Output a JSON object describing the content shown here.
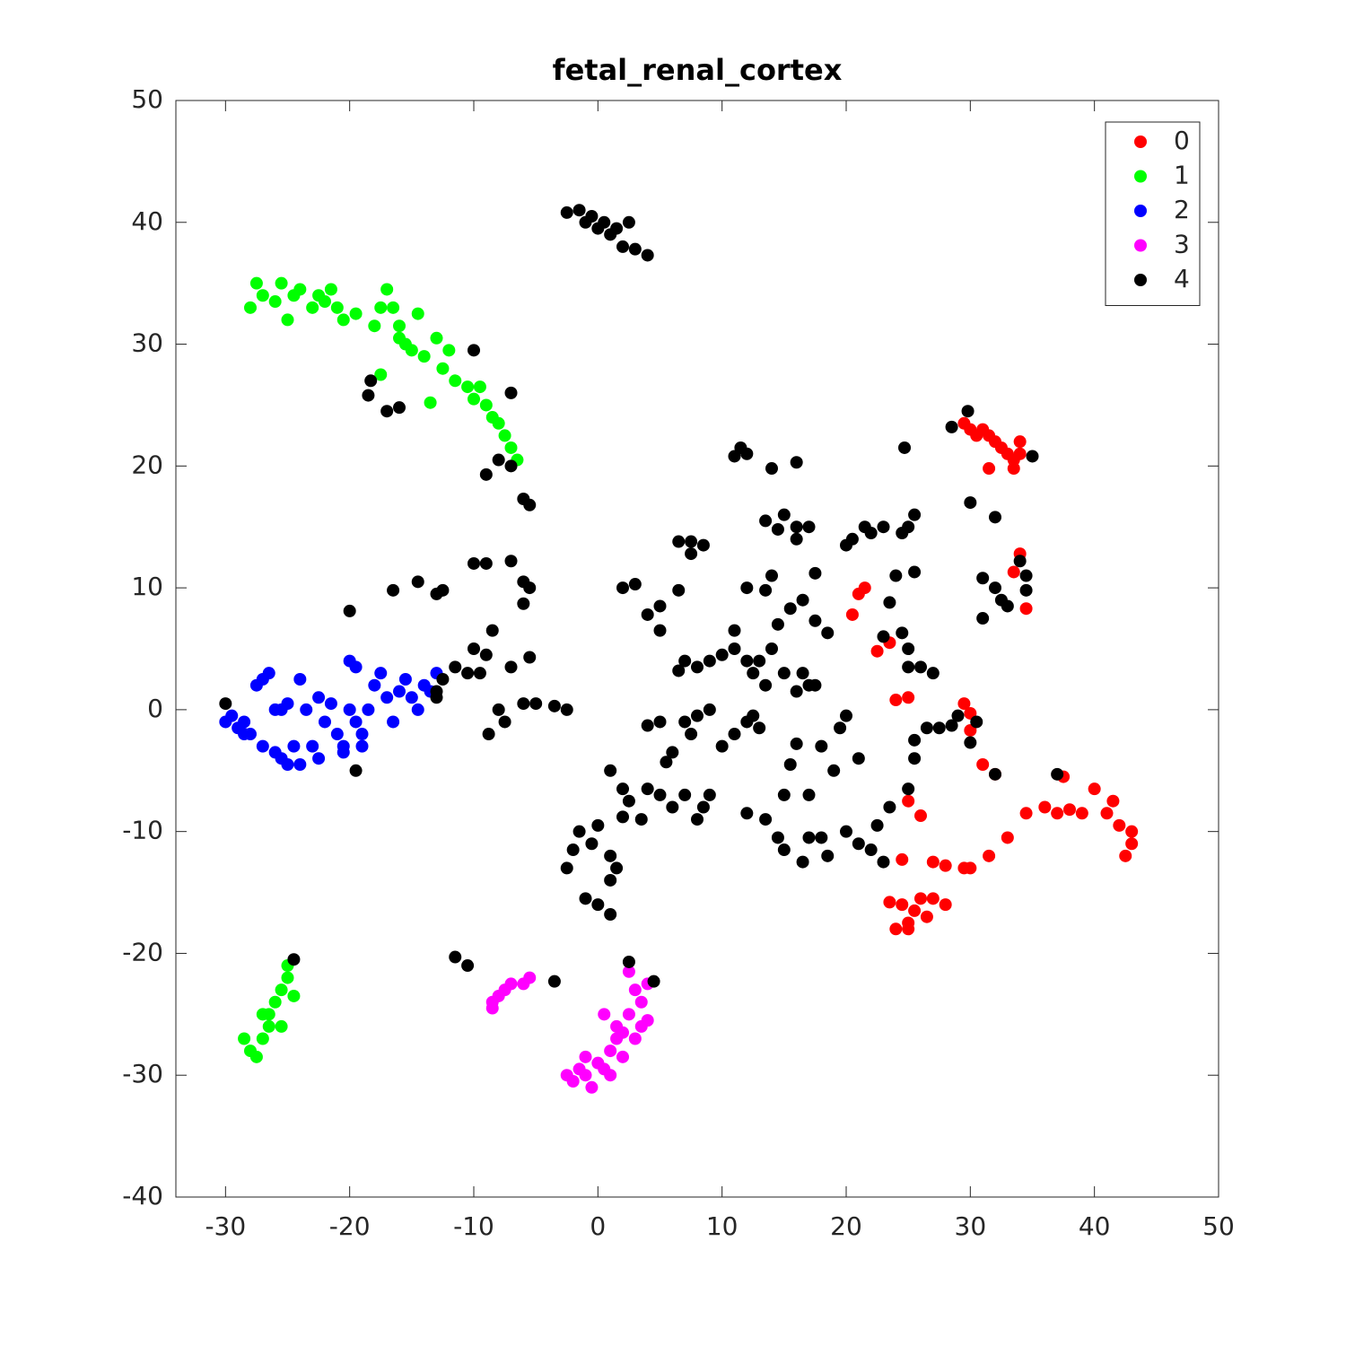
{
  "chart_data": {
    "type": "scatter",
    "title": "fetal_renal_cortex",
    "xlim": [
      -34,
      50
    ],
    "ylim": [
      -40,
      50
    ],
    "xticks": [
      -30,
      -20,
      -10,
      0,
      10,
      20,
      30,
      40,
      50
    ],
    "yticks": [
      -40,
      -30,
      -20,
      -10,
      0,
      10,
      20,
      30,
      40,
      50
    ],
    "legend": "top-right",
    "series": [
      {
        "name": "0",
        "color": "#ff0000",
        "x": [
          29.5,
          30,
          30.5,
          31,
          31.5,
          32,
          32.5,
          33,
          33.5,
          34,
          31.5,
          33.5,
          34,
          21,
          21.5,
          20.5,
          22.5,
          23.5,
          24,
          25,
          29.5,
          30,
          30,
          31,
          32,
          25,
          26,
          24.5,
          27,
          28,
          29.5,
          30,
          31.5,
          33,
          34.5,
          36,
          37,
          38,
          39,
          40,
          41,
          41.5,
          42,
          43,
          42.5,
          43,
          37.5,
          34,
          33.5,
          34.5,
          24.5,
          25,
          25.5,
          26,
          26.5,
          27,
          24,
          25,
          23.5,
          28
        ],
        "y": [
          23.5,
          23,
          22.5,
          23,
          22.5,
          22,
          21.5,
          21,
          20.5,
          21,
          19.8,
          19.8,
          22,
          9.5,
          10,
          7.8,
          4.8,
          5.5,
          0.8,
          1,
          0.5,
          -0.3,
          -1.7,
          -4.5,
          -5.3,
          -7.5,
          -8.7,
          -12.3,
          -12.5,
          -12.8,
          -13,
          -13,
          -12,
          -10.5,
          -8.5,
          -8,
          -8.5,
          -8.2,
          -8.5,
          -6.5,
          -8.5,
          -7.5,
          -9.5,
          -11,
          -12,
          -10,
          -5.5,
          12.8,
          11.3,
          8.3,
          -16,
          -17.5,
          -16.5,
          -15.5,
          -17,
          -15.5,
          -18,
          -18,
          -15.8,
          -16
        ]
      },
      {
        "name": "1",
        "color": "#00ff00",
        "x": [
          -28,
          -27.5,
          -27,
          -26,
          -25.5,
          -25,
          -24.5,
          -24,
          -23,
          -22.5,
          -22,
          -21.5,
          -21,
          -20.5,
          -19.5,
          -18,
          -17.5,
          -17,
          -16.5,
          -16,
          -15.5,
          -14.5,
          -15,
          -14,
          -13,
          -12.5,
          -12,
          -11.5,
          -10.5,
          -10,
          -9.5,
          -9,
          -8.5,
          -8,
          -7.5,
          -7,
          -6.5,
          -13.5,
          -17.5,
          -16,
          -28.5,
          -28,
          -27.5,
          -27,
          -26.5,
          -26.5,
          -26,
          -25.5,
          -25,
          -25,
          -24.5,
          -25.5,
          -27
        ],
        "y": [
          33,
          35,
          34,
          33.5,
          35,
          32,
          34,
          34.5,
          33,
          34,
          33.5,
          34.5,
          33,
          32,
          32.5,
          31.5,
          33,
          34.5,
          33,
          31.5,
          30,
          32.5,
          29.5,
          29,
          30.5,
          28,
          29.5,
          27,
          26.5,
          25.5,
          26.5,
          25,
          24,
          23.5,
          22.5,
          21.5,
          20.5,
          25.2,
          27.5,
          30.5,
          -27,
          -28,
          -28.5,
          -27,
          -26,
          -25,
          -24,
          -23,
          -22,
          -21,
          -23.5,
          -26,
          -25
        ]
      },
      {
        "name": "2",
        "color": "#0000ff",
        "x": [
          -30,
          -29.5,
          -29,
          -28.5,
          -28,
          -27.5,
          -27,
          -26.5,
          -27,
          -26,
          -25.5,
          -25,
          -24.5,
          -24,
          -25.5,
          -25,
          -24,
          -23.5,
          -23,
          -22.5,
          -22.5,
          -22,
          -21.5,
          -21,
          -20.5,
          -20,
          -19.5,
          -20,
          -19.5,
          -19,
          -18.5,
          -18,
          -17.5,
          -17,
          -16.5,
          -16,
          -15.5,
          -15,
          -14.5,
          -14,
          -13.5,
          -13,
          -19,
          -20.5,
          -28.5,
          -26
        ],
        "y": [
          -1,
          -0.5,
          -1.5,
          -1,
          -2,
          2,
          2.5,
          3,
          -3,
          -3.5,
          -4,
          -4.5,
          -3,
          -4.5,
          0,
          0.5,
          2.5,
          0,
          -3,
          -4,
          1,
          -1,
          0.5,
          -2,
          -3,
          4,
          3.5,
          0,
          -1,
          -2,
          0,
          2,
          3,
          1,
          -1,
          1.5,
          2.5,
          1,
          0,
          2,
          1.5,
          3,
          -3,
          -3.5,
          -2,
          0
        ]
      },
      {
        "name": "3",
        "color": "#ff00ff",
        "x": [
          -8.5,
          -8,
          -7.5,
          -7,
          -6,
          -5.5,
          -8.5,
          -2.5,
          -2,
          -1.5,
          -1,
          -1,
          -0.5,
          0,
          0.5,
          1,
          1,
          1.5,
          2,
          2,
          2.5,
          2.5,
          3,
          3,
          3.5,
          3.5,
          4,
          4,
          0.5,
          1.5
        ],
        "y": [
          -24,
          -23.5,
          -23,
          -22.5,
          -22.5,
          -22,
          -24.5,
          -30,
          -30.5,
          -29.5,
          -28.5,
          -30,
          -31,
          -29,
          -29.5,
          -28,
          -30,
          -27,
          -26.5,
          -28.5,
          -25,
          -21.5,
          -23,
          -27,
          -24,
          -26,
          -22.5,
          -25.5,
          -25,
          -26
        ]
      },
      {
        "name": "4",
        "color": "#000000",
        "x": [
          -1.5,
          -1,
          -0.5,
          0,
          0.5,
          1,
          1.5,
          2,
          2.5,
          3,
          4,
          -2.5,
          -10,
          -7,
          -18.5,
          -18.3,
          -17,
          -16,
          -8,
          -7,
          -9,
          -6,
          -5.5,
          -10,
          -9,
          -7,
          -6,
          -5.5,
          -6,
          -13,
          -12.5,
          -14.5,
          -16.5,
          -20,
          -10,
          -9,
          -8.5,
          -10.5,
          -11.5,
          -12.5,
          -13,
          -9.5,
          -8,
          -7.5,
          -8.8,
          -6,
          -5,
          -3.5,
          -2.5,
          -7,
          -5.5,
          -13,
          -30,
          -19.5,
          -24.5,
          -11.5,
          -10.5,
          -3.5,
          2.5,
          4.5,
          2,
          3,
          4,
          5,
          5,
          6.5,
          6.5,
          7.5,
          7.5,
          8.5,
          6.5,
          7,
          8,
          9,
          10,
          11,
          11,
          12,
          12.5,
          13,
          13.5,
          14,
          14.5,
          15,
          16,
          16.5,
          17,
          17.5,
          15.5,
          13.5,
          12,
          14,
          16.5,
          17.5,
          18.5,
          17.5,
          11,
          11.5,
          12,
          14,
          16,
          13.5,
          15,
          16,
          17,
          14.5,
          16,
          20,
          20.5,
          21.5,
          22,
          23,
          24.5,
          25,
          25.5,
          24.7,
          29.8,
          28.5,
          30,
          32,
          35,
          23.5,
          24,
          25.5,
          24.5,
          23,
          31,
          32,
          32.5,
          33,
          34.5,
          34.5,
          34,
          31,
          5,
          4,
          6,
          5.5,
          7,
          7.5,
          8,
          9,
          10,
          11,
          12,
          12.5,
          13,
          1,
          2,
          2.5,
          4,
          5,
          6,
          7,
          8,
          8.5,
          9,
          3.5,
          2,
          0,
          -1.5,
          -2,
          -0.5,
          -2.5,
          1,
          1.5,
          1,
          -1,
          0,
          1,
          12,
          13.5,
          14.5,
          15,
          16.5,
          17,
          18,
          18.5,
          17,
          15.5,
          18,
          16,
          15,
          19,
          19.5,
          20,
          21,
          20,
          21,
          22,
          23,
          23.5,
          25,
          25.5,
          25.5,
          26.5,
          27.5,
          29,
          30,
          30.5,
          25,
          26,
          27,
          25,
          32,
          37,
          28.5,
          22.5
        ],
        "y": [
          41,
          40,
          40.5,
          39.5,
          40,
          39,
          39.5,
          38,
          40,
          37.8,
          37.3,
          40.8,
          29.5,
          26,
          25.8,
          27,
          24.5,
          24.8,
          20.5,
          20,
          19.3,
          17.3,
          16.8,
          12,
          12,
          12.2,
          10.5,
          10,
          8.7,
          9.5,
          9.8,
          10.5,
          9.8,
          8.1,
          5,
          4.5,
          6.5,
          3,
          3.5,
          2.5,
          1.5,
          3,
          0,
          -1,
          -2,
          0.5,
          0.5,
          0.3,
          0,
          3.5,
          4.3,
          1,
          0.5,
          -5,
          -20.5,
          -20.3,
          -21,
          -22.3,
          -20.7,
          -22.3,
          10,
          10.3,
          7.8,
          8.5,
          6.5,
          9.8,
          13.8,
          13.8,
          12.8,
          13.5,
          3.2,
          4,
          3.5,
          4,
          4.5,
          5,
          6.5,
          4,
          3,
          4,
          2,
          5,
          7,
          3,
          1.5,
          3,
          2,
          2,
          8.3,
          9.8,
          10,
          11,
          9,
          7.3,
          6.3,
          11.2,
          20.8,
          21.5,
          21,
          19.8,
          20.3,
          15.5,
          16,
          15,
          15,
          14.8,
          14,
          13.5,
          14,
          15,
          14.5,
          15,
          14.5,
          15,
          16,
          21.5,
          24.5,
          23.2,
          17,
          15.8,
          20.8,
          8.8,
          11,
          11.3,
          6.3,
          6,
          10.8,
          10,
          9,
          8.5,
          9.8,
          11,
          12.2,
          7.5,
          -1,
          -1.3,
          -3.5,
          -4.3,
          -1,
          -2,
          -0.5,
          0,
          -3,
          -2,
          -1,
          -0.5,
          -1.5,
          -5,
          -6.5,
          -7.5,
          -6.5,
          -7,
          -8,
          -7,
          -9,
          -8,
          -7,
          -9,
          -8.8,
          -9.5,
          -10,
          -11.5,
          -11,
          -13,
          -12,
          -13,
          -14,
          -15.5,
          -16,
          -16.8,
          -8.5,
          -9,
          -10.5,
          -11.5,
          -12.5,
          -10.5,
          -10.5,
          -12,
          -7,
          -4.5,
          -3,
          -2.8,
          -7,
          -5,
          -1.5,
          -0.5,
          -4,
          -10,
          -11,
          -11.5,
          -12.5,
          -8,
          -6.5,
          -4,
          -2.5,
          -1.5,
          -1.5,
          -0.5,
          -2.7,
          -1,
          3.5,
          3.5,
          3,
          5,
          -5.3,
          -5.3,
          -1.3,
          -9.5
        ]
      }
    ]
  }
}
